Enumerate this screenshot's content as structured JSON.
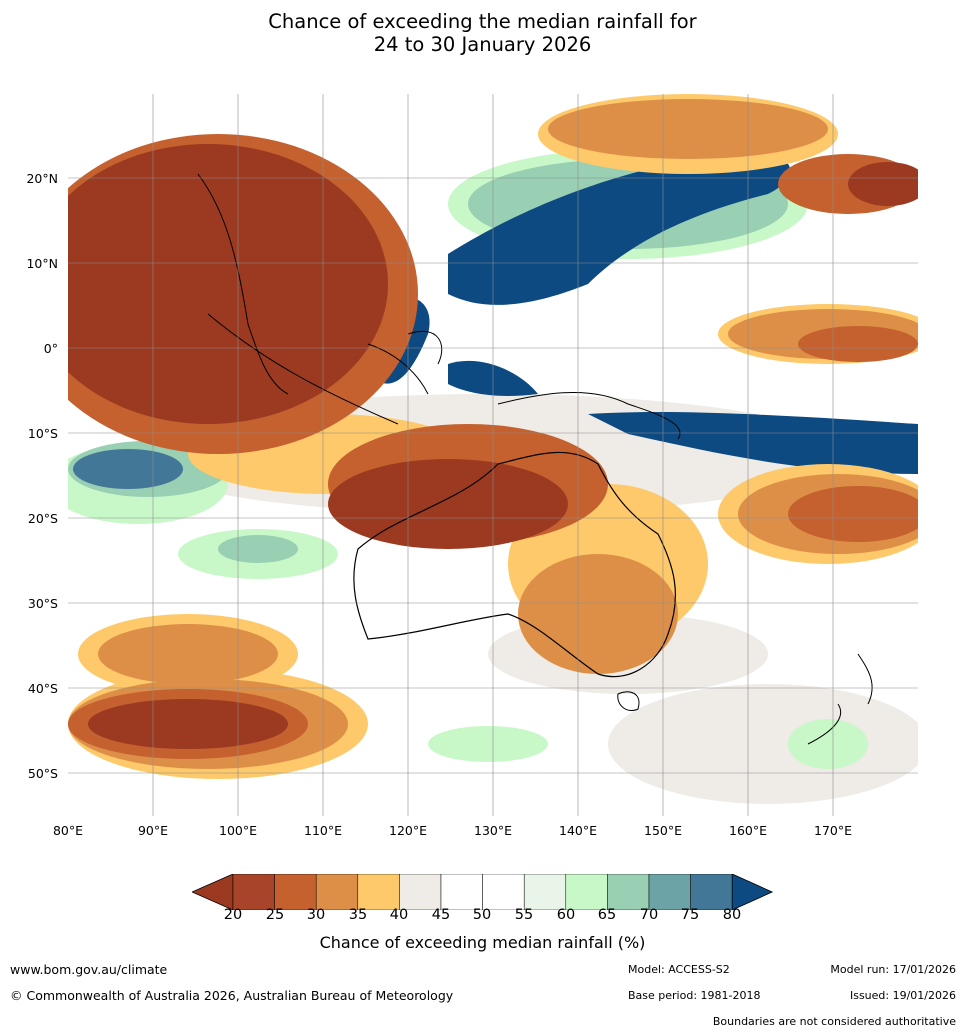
{
  "title": {
    "line1": "Chance of exceeding the median rainfall for",
    "line2": "24 to 30 January 2026"
  },
  "axes": {
    "lat_labels": [
      "20°N",
      "10°N",
      "0°",
      "10°S",
      "20°S",
      "30°S",
      "40°S",
      "50°S"
    ],
    "lon_labels": [
      "80°E",
      "90°E",
      "100°E",
      "110°E",
      "120°E",
      "130°E",
      "140°E",
      "150°E",
      "160°E",
      "170°E"
    ]
  },
  "colorbar": {
    "ticks": [
      "20",
      "25",
      "30",
      "35",
      "40",
      "45",
      "50",
      "55",
      "60",
      "65",
      "70",
      "75",
      "80"
    ],
    "colors": [
      "#9b3a21",
      "#a8442a",
      "#c4612f",
      "#de8f47",
      "#fdc96a",
      "#efebe6",
      "#ffffff",
      "#ffffff",
      "#e8f5e8",
      "#c8f8c8",
      "#99d0b4",
      "#6ba3a6",
      "#437797",
      "#0d4a82"
    ],
    "label": "Chance of exceeding median rainfall (%)"
  },
  "footer": {
    "website": "www.bom.gov.au/climate",
    "copyright": "© Commonwealth of Australia 2026, Australian Bureau of Meteorology",
    "model": "Model: ACCESS-S2",
    "base_period": "Base period: 1981-2018",
    "model_run": "Model run: 17/01/2026",
    "issued": "Issued: 19/01/2026",
    "disclaimer": "Boundaries are not considered authoritative"
  }
}
